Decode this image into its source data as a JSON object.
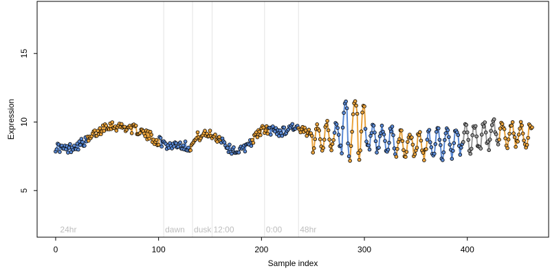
{
  "colors": {
    "background": "#ffffff",
    "frame": "#000000",
    "guide_line": "#e3e3e3",
    "annotation_text": "#bdbdbd",
    "point_stroke": "#000000",
    "segment_colors": [
      "#5a89d4",
      "#e9a23b",
      "#9a9a9a"
    ]
  },
  "chart_data": {
    "type": "scatter",
    "title": "",
    "xlabel": "Sample index",
    "ylabel": "Expression",
    "xlim": [
      -18,
      479
    ],
    "ylim": [
      1.6,
      18.8
    ],
    "x_ticks": [
      0,
      100,
      200,
      300,
      400
    ],
    "y_ticks": [
      5,
      10,
      15
    ],
    "x_tick_labels": [
      "0",
      "100",
      "200",
      "300",
      "400"
    ],
    "y_tick_labels": [
      "5",
      "10",
      "15"
    ],
    "grid": false,
    "legend": "none",
    "guides": [
      {
        "x": 105,
        "label": "dawn"
      },
      {
        "x": 133,
        "label": "dusk"
      },
      {
        "x": 152,
        "label": "12:00"
      },
      {
        "x": 203,
        "label": "0:00"
      },
      {
        "x": 236,
        "label": "48hr"
      }
    ],
    "corner_label": {
      "x": 3,
      "label": "24hr"
    },
    "segments": [
      {
        "from": 0,
        "to": 30,
        "color": "#5a89d4"
      },
      {
        "from": 31,
        "to": 100,
        "color": "#e9a23b"
      },
      {
        "from": 101,
        "to": 130,
        "color": "#5a89d4"
      },
      {
        "from": 131,
        "to": 160,
        "color": "#e9a23b"
      },
      {
        "from": 161,
        "to": 190,
        "color": "#5a89d4"
      },
      {
        "from": 191,
        "to": 206,
        "color": "#e9a23b"
      },
      {
        "from": 207,
        "to": 235,
        "color": "#5a89d4"
      },
      {
        "from": 236,
        "to": 270,
        "color": "#e9a23b"
      },
      {
        "from": 271,
        "to": 285,
        "color": "#5a89d4"
      },
      {
        "from": 286,
        "to": 300,
        "color": "#e9a23b"
      },
      {
        "from": 301,
        "to": 330,
        "color": "#5a89d4"
      },
      {
        "from": 331,
        "to": 360,
        "color": "#e9a23b"
      },
      {
        "from": 361,
        "to": 395,
        "color": "#5a89d4"
      },
      {
        "from": 396,
        "to": 430,
        "color": "#9a9a9a"
      },
      {
        "from": 431,
        "to": 463,
        "color": "#e9a23b"
      }
    ],
    "anchors": [
      [
        0,
        8.2
      ],
      [
        10,
        8.0
      ],
      [
        20,
        8.3
      ],
      [
        30,
        8.6
      ],
      [
        40,
        9.2
      ],
      [
        50,
        9.8
      ],
      [
        60,
        9.7
      ],
      [
        70,
        9.6
      ],
      [
        80,
        9.4
      ],
      [
        90,
        9.0
      ],
      [
        100,
        8.6
      ],
      [
        110,
        8.3
      ],
      [
        120,
        8.4
      ],
      [
        130,
        8.2
      ],
      [
        140,
        9.0
      ],
      [
        150,
        9.1
      ],
      [
        160,
        8.8
      ],
      [
        170,
        8.0
      ],
      [
        180,
        7.9
      ],
      [
        190,
        8.6
      ],
      [
        200,
        9.4
      ],
      [
        210,
        9.4
      ],
      [
        220,
        9.3
      ],
      [
        230,
        9.7
      ],
      [
        240,
        9.3
      ],
      [
        250,
        9.0
      ],
      [
        260,
        9.0
      ],
      [
        270,
        8.9
      ],
      [
        280,
        9.4
      ],
      [
        290,
        9.5
      ],
      [
        300,
        9.0
      ],
      [
        310,
        8.6
      ],
      [
        320,
        8.7
      ],
      [
        330,
        8.5
      ],
      [
        340,
        8.4
      ],
      [
        350,
        8.3
      ],
      [
        360,
        8.3
      ],
      [
        370,
        8.5
      ],
      [
        380,
        8.4
      ],
      [
        390,
        8.6
      ],
      [
        400,
        8.9
      ],
      [
        410,
        8.8
      ],
      [
        420,
        9.1
      ],
      [
        430,
        9.2
      ],
      [
        440,
        9.1
      ],
      [
        450,
        9.2
      ],
      [
        463,
        9.0
      ]
    ],
    "oscillations": [
      {
        "from": 250,
        "to": 463,
        "amplitude": 0.9,
        "period": 9
      },
      {
        "from": 278,
        "to": 300,
        "amplitude": 1.3,
        "period": 9
      }
    ],
    "noise": 0.35,
    "n_points": 464
  }
}
